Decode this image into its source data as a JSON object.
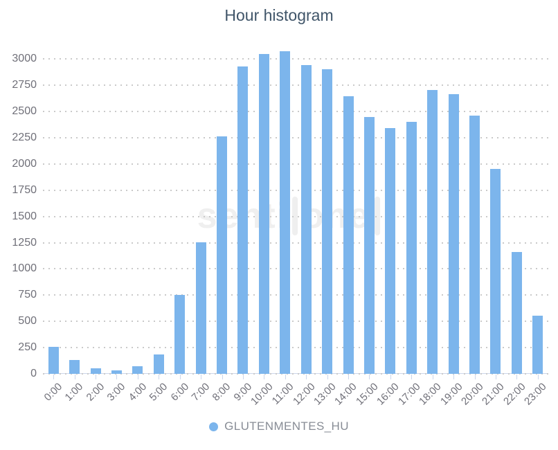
{
  "chart_data": {
    "type": "bar",
    "title": "Hour histogram",
    "categories": [
      "0:00",
      "1:00",
      "2:00",
      "3:00",
      "4:00",
      "5:00",
      "6:00",
      "7:00",
      "8:00",
      "9:00",
      "10:00",
      "11:00",
      "12:00",
      "13:00",
      "14:00",
      "15:00",
      "16:00",
      "17:00",
      "18:00",
      "19:00",
      "20:00",
      "21:00",
      "22:00",
      "23:00"
    ],
    "series": [
      {
        "name": "GLUTENMENTES_HU",
        "values": [
          255,
          130,
          55,
          30,
          70,
          185,
          750,
          1255,
          2260,
          2930,
          3050,
          3075,
          2940,
          2900,
          2645,
          2445,
          2340,
          2400,
          2705,
          2665,
          2460,
          1950,
          1160,
          555
        ]
      }
    ],
    "xlabel": "",
    "ylabel": "",
    "ylim": [
      0,
      3200
    ],
    "yticks": [
      0,
      250,
      500,
      750,
      1000,
      1250,
      1500,
      1750,
      2000,
      2250,
      2500,
      2750,
      3000
    ],
    "grid": "horizontal-dotted",
    "legend_position": "bottom-center",
    "x_label_rotation": -45
  },
  "legend": {
    "label": "GLUTENMENTES_HU"
  },
  "watermark": {
    "prefix": "senti",
    "boxed": "one"
  },
  "colors": {
    "bar": "#7cb5ec",
    "grid_dots": "#c9c9c9",
    "axis_line": "#ccd6eb",
    "title_text": "#405569",
    "axis_label_text": "#6f6f78",
    "legend_text": "#878c95",
    "watermark_text": "#efefef"
  }
}
